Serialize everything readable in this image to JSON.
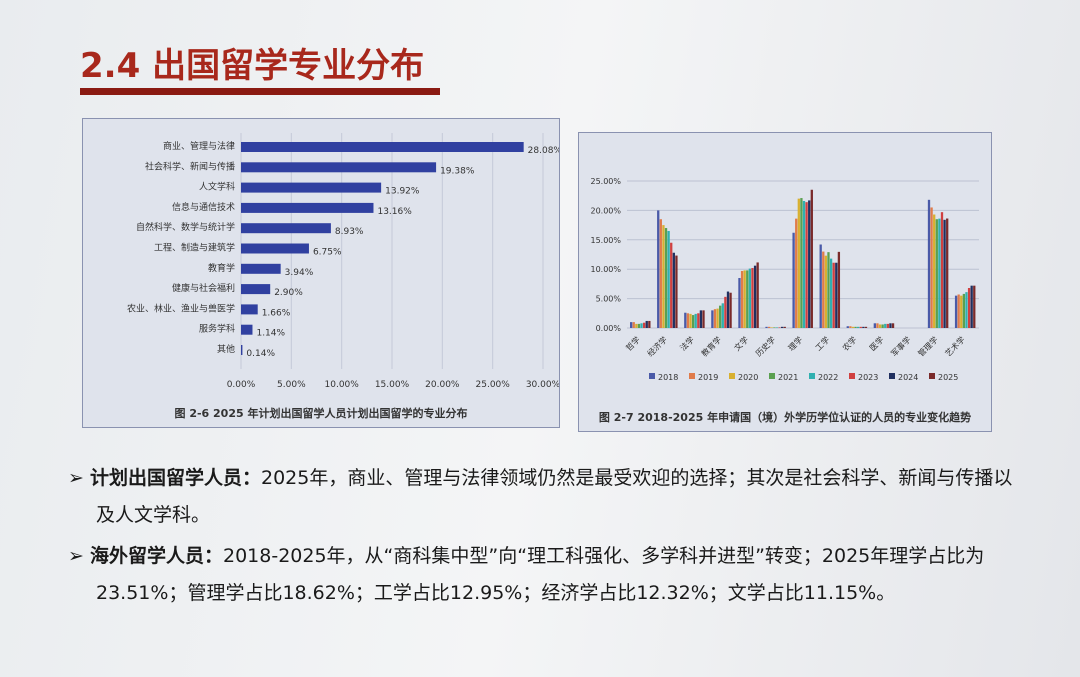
{
  "slide": {
    "title": "2.4 出国留学专业分布"
  },
  "chart_data": [
    {
      "type": "bar",
      "orientation": "horizontal",
      "caption": "图 2-6 2025 年计划出国留学人员计划出国留学的专业分布",
      "categories": [
        "商业、管理与法律",
        "社会科学、新闻与传播",
        "人文学科",
        "信息与通信技术",
        "自然科学、数学与统计学",
        "工程、制造与建筑学",
        "教育学",
        "健康与社会福利",
        "农业、林业、渔业与兽医学",
        "服务学科",
        "其他"
      ],
      "values": [
        28.08,
        19.38,
        13.92,
        13.16,
        8.93,
        6.75,
        3.94,
        2.9,
        1.66,
        1.14,
        0.14
      ],
      "labels": [
        "28.08%",
        "19.38%",
        "13.92%",
        "13.16%",
        "8.93%",
        "6.75%",
        "3.94%",
        "2.90%",
        "1.66%",
        "1.14%",
        "0.14%"
      ],
      "xticks": [
        "0.00%",
        "5.00%",
        "10.00%",
        "15.00%",
        "20.00%",
        "25.00%",
        "30.00%"
      ],
      "xlim": [
        0,
        30
      ],
      "grid": true,
      "color": "#3040a0"
    },
    {
      "type": "bar",
      "orientation": "vertical",
      "caption": "图 2-7 2018-2025 年申请国（境）外学历学位认证的人员的专业变化趋势",
      "categories": [
        "哲学",
        "经济学",
        "法学",
        "教育学",
        "文学",
        "历史学",
        "理学",
        "工学",
        "农学",
        "医学",
        "军事学",
        "管理学",
        "艺术学"
      ],
      "yticks": [
        "0.00%",
        "5.00%",
        "10.00%",
        "15.00%",
        "20.00%",
        "25.00%"
      ],
      "ylim": [
        0,
        25
      ],
      "grid": true,
      "legend": "bottom",
      "series": [
        {
          "name": "2018",
          "color": "#4a5aa8",
          "values": [
            1.0,
            20.0,
            2.6,
            3.0,
            8.5,
            0.2,
            16.2,
            14.2,
            0.3,
            0.8,
            0,
            21.8,
            5.5
          ]
        },
        {
          "name": "2019",
          "color": "#e07b4a",
          "values": [
            1.0,
            18.5,
            2.5,
            3.2,
            9.7,
            0.2,
            18.6,
            13.0,
            0.3,
            0.8,
            0,
            20.5,
            5.7
          ]
        },
        {
          "name": "2020",
          "color": "#d8b030",
          "values": [
            0.7,
            17.5,
            2.4,
            3.3,
            9.8,
            0.1,
            22.0,
            12.3,
            0.2,
            0.6,
            0,
            19.3,
            5.5
          ]
        },
        {
          "name": "2021",
          "color": "#5aa050",
          "values": [
            0.7,
            17.0,
            2.2,
            3.8,
            9.8,
            0.1,
            22.1,
            12.9,
            0.2,
            0.6,
            0,
            18.5,
            5.8
          ]
        },
        {
          "name": "2022",
          "color": "#30b0b0",
          "values": [
            0.8,
            16.5,
            2.4,
            4.2,
            10.1,
            0.1,
            21.6,
            11.8,
            0.2,
            0.7,
            0,
            18.6,
            6.1
          ]
        },
        {
          "name": "2023",
          "color": "#d04040",
          "values": [
            0.9,
            14.5,
            2.5,
            5.3,
            10.2,
            0.1,
            21.4,
            11.1,
            0.2,
            0.7,
            0,
            19.7,
            6.8
          ]
        },
        {
          "name": "2024",
          "color": "#203060",
          "values": [
            1.2,
            12.8,
            3.0,
            6.2,
            10.6,
            0.2,
            21.7,
            11.1,
            0.2,
            0.8,
            0,
            18.4,
            7.2
          ]
        },
        {
          "name": "2025",
          "color": "#7a2a2a",
          "values": [
            1.2,
            12.32,
            3.0,
            6.0,
            11.15,
            0.2,
            23.51,
            12.95,
            0.2,
            0.8,
            0,
            18.62,
            7.2
          ]
        }
      ]
    }
  ],
  "bullets": [
    {
      "head": "计划出国留学人员：",
      "body": "2025年，商业、管理与法律领域仍然是最受欢迎的选择；其次是社会科学、新闻与传播以及人文学科。"
    },
    {
      "head": "海外留学人员：",
      "body": "2018-2025年，从“商科集中型”向“理工科强化、多学科并进型”转变；2025年理学占比为23.51%；管理学占比18.62%；工学占比12.95%；经济学占比12.32%；文学占比11.15%。"
    }
  ]
}
